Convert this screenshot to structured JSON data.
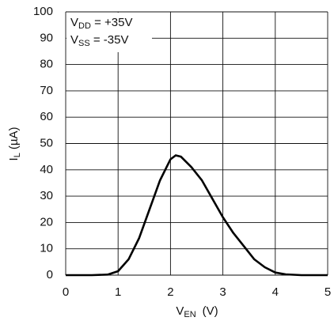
{
  "chart_data": {
    "type": "line",
    "x_label": {
      "main": "V",
      "sub": "EN",
      "unit": "(V)"
    },
    "y_label": {
      "main": "I",
      "sub": "L",
      "unit": "(µA)"
    },
    "annotations": [
      {
        "main": "V",
        "sub": "DD",
        "rest": " = +35V"
      },
      {
        "main": "V",
        "sub": "SS",
        "rest": " = -35V"
      }
    ],
    "x": [
      0,
      0.5,
      0.8,
      1,
      1.2,
      1.4,
      1.6,
      1.8,
      2,
      2.1,
      2.2,
      2.4,
      2.6,
      2.8,
      3,
      3.2,
      3.4,
      3.6,
      3.8,
      4,
      4.2,
      4.5,
      5
    ],
    "series": [
      {
        "color": "#000000",
        "values": [
          0,
          0,
          0.2,
          1.5,
          6,
          14,
          25,
          36,
          44,
          45.5,
          45,
          41,
          36,
          29,
          22,
          16,
          11,
          6,
          3,
          1,
          0.3,
          0,
          0
        ]
      }
    ],
    "xlim": [
      0,
      5
    ],
    "xticks": [
      0,
      1,
      2,
      3,
      4,
      5
    ],
    "ylim": [
      0,
      100
    ],
    "yticks": [
      0,
      10,
      20,
      30,
      40,
      50,
      60,
      70,
      80,
      90,
      100
    ],
    "grid": true
  }
}
